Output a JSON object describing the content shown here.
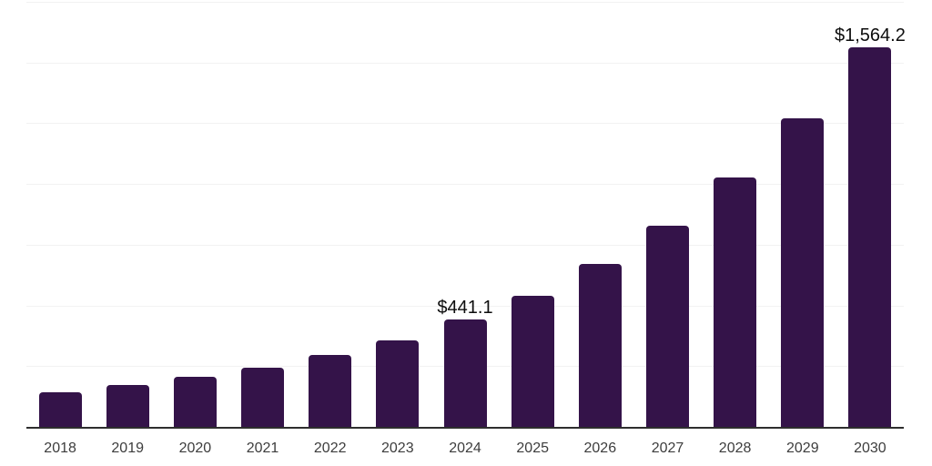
{
  "chart_data": {
    "type": "bar",
    "categories": [
      "2018",
      "2019",
      "2020",
      "2021",
      "2022",
      "2023",
      "2024",
      "2025",
      "2026",
      "2027",
      "2028",
      "2029",
      "2030"
    ],
    "values": [
      143.3,
      173.2,
      204.6,
      245.5,
      295.5,
      357.8,
      441.1,
      538.0,
      671.9,
      827.6,
      1025.7,
      1271.0,
      1564.2
    ],
    "bar_labels": [
      "",
      "",
      "",
      "",
      "",
      "",
      "$441.1",
      "",
      "",
      "",
      "",
      "",
      "$1,564.2"
    ],
    "title": "",
    "xlabel": "",
    "ylabel": "",
    "ylim": [
      0,
      1750
    ],
    "gridline_interval": 250,
    "grid": true,
    "legend": false,
    "y_tick_labels_shown": false,
    "colors": {
      "bar_fill": "#341349",
      "gridline": "#f2f2f2",
      "axis_line": "#2e2e2e",
      "value_label_text": "#0d0d0d",
      "tick_label_text": "#3d3d3d",
      "background": "#ffffff"
    }
  }
}
